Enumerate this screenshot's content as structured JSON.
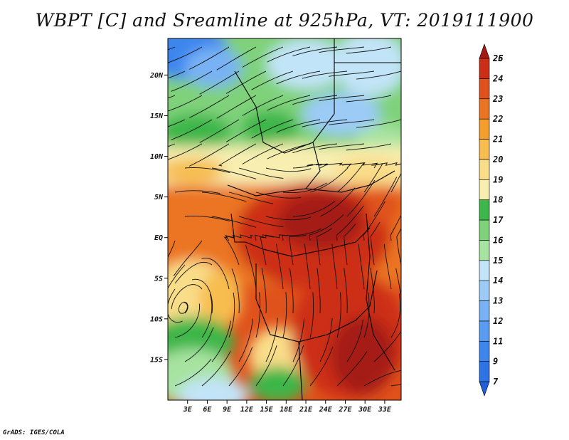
{
  "title": "WBPT [C] and Sreamline at 925hPa, VT: 2019111900",
  "credit": "GrADS: IGES/COLA",
  "chart_data": {
    "type": "heatmap",
    "title": "WBPT [C] and Sreamline at 925hPa, VT: 2019111900",
    "variable": "Wet-bulb potential temperature [C] with streamlines",
    "level": "925hPa",
    "valid_time": "2019111900",
    "xlim": [
      0,
      35.5
    ],
    "ylim": [
      -20,
      24.5
    ],
    "x_ticks": [
      {
        "value": 3,
        "label": "3E"
      },
      {
        "value": 6,
        "label": "6E"
      },
      {
        "value": 9,
        "label": "9E"
      },
      {
        "value": 12,
        "label": "12E"
      },
      {
        "value": 15,
        "label": "15E"
      },
      {
        "value": 18,
        "label": "18E"
      },
      {
        "value": 21,
        "label": "21E"
      },
      {
        "value": 24,
        "label": "24E"
      },
      {
        "value": 27,
        "label": "27E"
      },
      {
        "value": 30,
        "label": "30E"
      },
      {
        "value": 33,
        "label": "33E"
      }
    ],
    "y_ticks": [
      {
        "value": 20,
        "label": "20N"
      },
      {
        "value": 15,
        "label": "15N"
      },
      {
        "value": 10,
        "label": "10N"
      },
      {
        "value": 5,
        "label": "5N"
      },
      {
        "value": 0,
        "label": "EQ"
      },
      {
        "value": -5,
        "label": "5S"
      },
      {
        "value": -10,
        "label": "10S"
      },
      {
        "value": -15,
        "label": "15S"
      }
    ],
    "colorbar": {
      "labels": [
        "7",
        "9",
        "11",
        "12",
        "13",
        "14",
        "15",
        "16",
        "17",
        "18",
        "19",
        "20",
        "21",
        "22",
        "23",
        "24",
        "25",
        "26"
      ],
      "colors": [
        "#1f5fd8",
        "#2e73e6",
        "#3d86ee",
        "#5a9cf2",
        "#79b2f4",
        "#9ccbf6",
        "#c2e4f8",
        "#a7e3a0",
        "#7fd27a",
        "#3db64a",
        "#f7eeb0",
        "#f9dd89",
        "#f7bd4f",
        "#f29d2c",
        "#eb7423",
        "#e0521c",
        "#cc2e17",
        "#a51a12"
      ]
    },
    "regions": [
      {
        "lon_range": [
          0,
          15
        ],
        "lat_range": [
          17,
          24.5
        ],
        "approx_value": 14
      },
      {
        "lon_range": [
          15,
          35.5
        ],
        "lat_range": [
          15,
          24.5
        ],
        "approx_value": 15
      },
      {
        "lon_range": [
          0,
          20
        ],
        "lat_range": [
          10,
          17
        ],
        "approx_value": 17
      },
      {
        "lon_range": [
          0,
          35.5
        ],
        "lat_range": [
          5,
          10
        ],
        "approx_value": 19
      },
      {
        "lon_range": [
          0,
          12
        ],
        "lat_range": [
          -5,
          5
        ],
        "approx_value": 23
      },
      {
        "lon_range": [
          12,
          35.5
        ],
        "lat_range": [
          -10,
          5
        ],
        "approx_value": 25
      },
      {
        "lon_range": [
          0,
          12
        ],
        "lat_range": [
          -12,
          -5
        ],
        "approx_value": 19
      },
      {
        "lon_range": [
          0,
          12
        ],
        "lat_range": [
          -20,
          -12
        ],
        "approx_value": 15
      },
      {
        "lon_range": [
          18,
          35.5
        ],
        "lat_range": [
          -20,
          -10
        ],
        "approx_value": 25
      }
    ]
  }
}
